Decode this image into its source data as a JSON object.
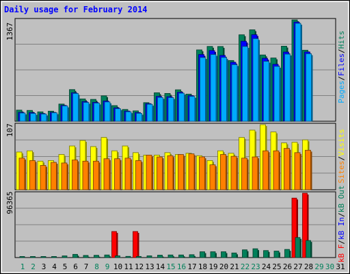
{
  "chart_data": [
    {
      "type": "bar",
      "title": "Daily usage for February 2014",
      "ymax_label": "1367",
      "ylim": [
        0,
        1367
      ],
      "categories": [
        "1",
        "2",
        "3",
        "4",
        "5",
        "6",
        "7",
        "8",
        "9",
        "10",
        "11",
        "12",
        "13",
        "14",
        "15",
        "16",
        "17",
        "18",
        "19",
        "20",
        "21",
        "22",
        "23",
        "24",
        "25",
        "26",
        "27",
        "28"
      ],
      "series": [
        {
          "name": "Hits",
          "color": "#00805a",
          "values": [
            150,
            146,
            127,
            136,
            232,
            427,
            301,
            295,
            343,
            211,
            159,
            140,
            251,
            384,
            375,
            424,
            366,
            962,
            1009,
            1008,
            819,
            1166,
            1233,
            894,
            853,
            1012,
            1367,
            958
          ]
        },
        {
          "name": "Files",
          "color": "#0000ff",
          "values": [
            120,
            116,
            104,
            120,
            214,
            384,
            265,
            255,
            273,
            180,
            137,
            117,
            238,
            335,
            331,
            391,
            346,
            900,
            953,
            888,
            795,
            1079,
            1167,
            849,
            768,
            933,
            1337,
            934
          ]
        },
        {
          "name": "Pages",
          "color": "#00aaff",
          "values": [
            111,
            105,
            97,
            114,
            206,
            375,
            254,
            245,
            260,
            169,
            128,
            107,
            229,
            321,
            319,
            378,
            335,
            859,
            900,
            860,
            763,
            1008,
            1114,
            808,
            740,
            905,
            1320,
            910
          ]
        }
      ]
    },
    {
      "type": "bar",
      "ymax_label": "107",
      "ylim": [
        0,
        107
      ],
      "categories": [
        "1",
        "2",
        "3",
        "4",
        "5",
        "6",
        "7",
        "8",
        "9",
        "10",
        "11",
        "12",
        "13",
        "14",
        "15",
        "16",
        "17",
        "18",
        "19",
        "20",
        "21",
        "22",
        "23",
        "24",
        "25",
        "26",
        "27",
        "28"
      ],
      "series": [
        {
          "name": "Visits",
          "color": "#ffff00",
          "values": [
            62,
            64,
            47,
            48,
            58,
            72,
            81,
            71,
            86,
            64,
            72,
            61,
            57,
            57,
            61,
            58,
            60,
            56,
            48,
            64,
            60,
            86,
            98,
            107,
            95,
            77,
            78,
            82
          ]
        },
        {
          "name": "Sites",
          "color": "#ff8000",
          "values": [
            52,
            48,
            40,
            45,
            44,
            49,
            47,
            47,
            51,
            51,
            52,
            48,
            57,
            54,
            56,
            58,
            59,
            54,
            41,
            58,
            55,
            52,
            54,
            64,
            64,
            68,
            61,
            65
          ]
        }
      ]
    },
    {
      "type": "bar",
      "ymax_label": "96365",
      "ylim": [
        0,
        96365
      ],
      "categories": [
        "1",
        "2",
        "3",
        "4",
        "5",
        "6",
        "7",
        "8",
        "9",
        "10",
        "11",
        "12",
        "13",
        "14",
        "15",
        "16",
        "17",
        "18",
        "19",
        "20",
        "21",
        "22",
        "23",
        "24",
        "25",
        "26",
        "27",
        "28"
      ],
      "series": [
        {
          "name": "kB F",
          "color": "#ff0000",
          "values": [
            0,
            0,
            0,
            0,
            0,
            0,
            0,
            0,
            0,
            39000,
            0,
            39000,
            0,
            0,
            0,
            0,
            0,
            0,
            0,
            0,
            0,
            0,
            0,
            0,
            0,
            0,
            89000,
            96365
          ]
        },
        {
          "name": "kB In",
          "color": "#0000ff",
          "values": [
            0,
            0,
            0,
            0,
            0,
            0,
            0,
            0,
            0,
            0,
            0,
            0,
            0,
            0,
            0,
            0,
            0,
            0,
            0,
            0,
            0,
            0,
            0,
            0,
            0,
            0,
            0,
            0
          ]
        },
        {
          "name": "kB Out",
          "color": "#00805a",
          "values": [
            1600,
            1600,
            1600,
            1600,
            2500,
            4800,
            3200,
            3400,
            3900,
            2600,
            1800,
            1700,
            2600,
            3600,
            3900,
            3900,
            4300,
            8700,
            8700,
            8700,
            6900,
            11600,
            13200,
            10500,
            9700,
            12200,
            30000,
            25500
          ]
        }
      ]
    }
  ],
  "xaxis": {
    "days": [
      {
        "label": "1",
        "color": "#00805a"
      },
      {
        "label": "2",
        "color": "#00805a"
      },
      {
        "label": "3",
        "color": "#000000"
      },
      {
        "label": "4",
        "color": "#000000"
      },
      {
        "label": "5",
        "color": "#000000"
      },
      {
        "label": "6",
        "color": "#000000"
      },
      {
        "label": "7",
        "color": "#000000"
      },
      {
        "label": "8",
        "color": "#00805a"
      },
      {
        "label": "9",
        "color": "#00805a"
      },
      {
        "label": "10",
        "color": "#000000"
      },
      {
        "label": "11",
        "color": "#000000"
      },
      {
        "label": "12",
        "color": "#000000"
      },
      {
        "label": "13",
        "color": "#000000"
      },
      {
        "label": "14",
        "color": "#000000"
      },
      {
        "label": "15",
        "color": "#00805a"
      },
      {
        "label": "16",
        "color": "#00805a"
      },
      {
        "label": "17",
        "color": "#000000"
      },
      {
        "label": "18",
        "color": "#000000"
      },
      {
        "label": "19",
        "color": "#000000"
      },
      {
        "label": "20",
        "color": "#000000"
      },
      {
        "label": "21",
        "color": "#000000"
      },
      {
        "label": "22",
        "color": "#00805a"
      },
      {
        "label": "23",
        "color": "#00805a"
      },
      {
        "label": "24",
        "color": "#000000"
      },
      {
        "label": "25",
        "color": "#000000"
      },
      {
        "label": "26",
        "color": "#000000"
      },
      {
        "label": "27",
        "color": "#000000"
      },
      {
        "label": "28",
        "color": "#000000"
      },
      {
        "label": "29",
        "color": "#00805a"
      },
      {
        "label": "30",
        "color": "#00805a"
      },
      {
        "label": "31",
        "color": "#000000"
      }
    ]
  },
  "legends": [
    [
      {
        "text": "Pages",
        "color": "#00aaff"
      },
      {
        "text": "/",
        "color": "#000000"
      },
      {
        "text": "Files",
        "color": "#0000ff"
      },
      {
        "text": "/",
        "color": "#000000"
      },
      {
        "text": "Hits",
        "color": "#00805a"
      }
    ],
    [
      {
        "text": "Sites",
        "color": "#ff8000"
      },
      {
        "text": "/",
        "color": "#000000"
      },
      {
        "text": "Visits",
        "color": "#ffff00"
      }
    ],
    [
      {
        "text": "kB F",
        "color": "#ff0000"
      },
      {
        "text": "/",
        "color": "#000000"
      },
      {
        "text": "kB In",
        "color": "#0000ff"
      },
      {
        "text": "/",
        "color": "#000000"
      },
      {
        "text": "kB Out",
        "color": "#00805a"
      }
    ]
  ],
  "colors": {
    "background": "#c0c0c0",
    "title": "#0000ff",
    "axis": "#000000",
    "grid": "#808080"
  }
}
